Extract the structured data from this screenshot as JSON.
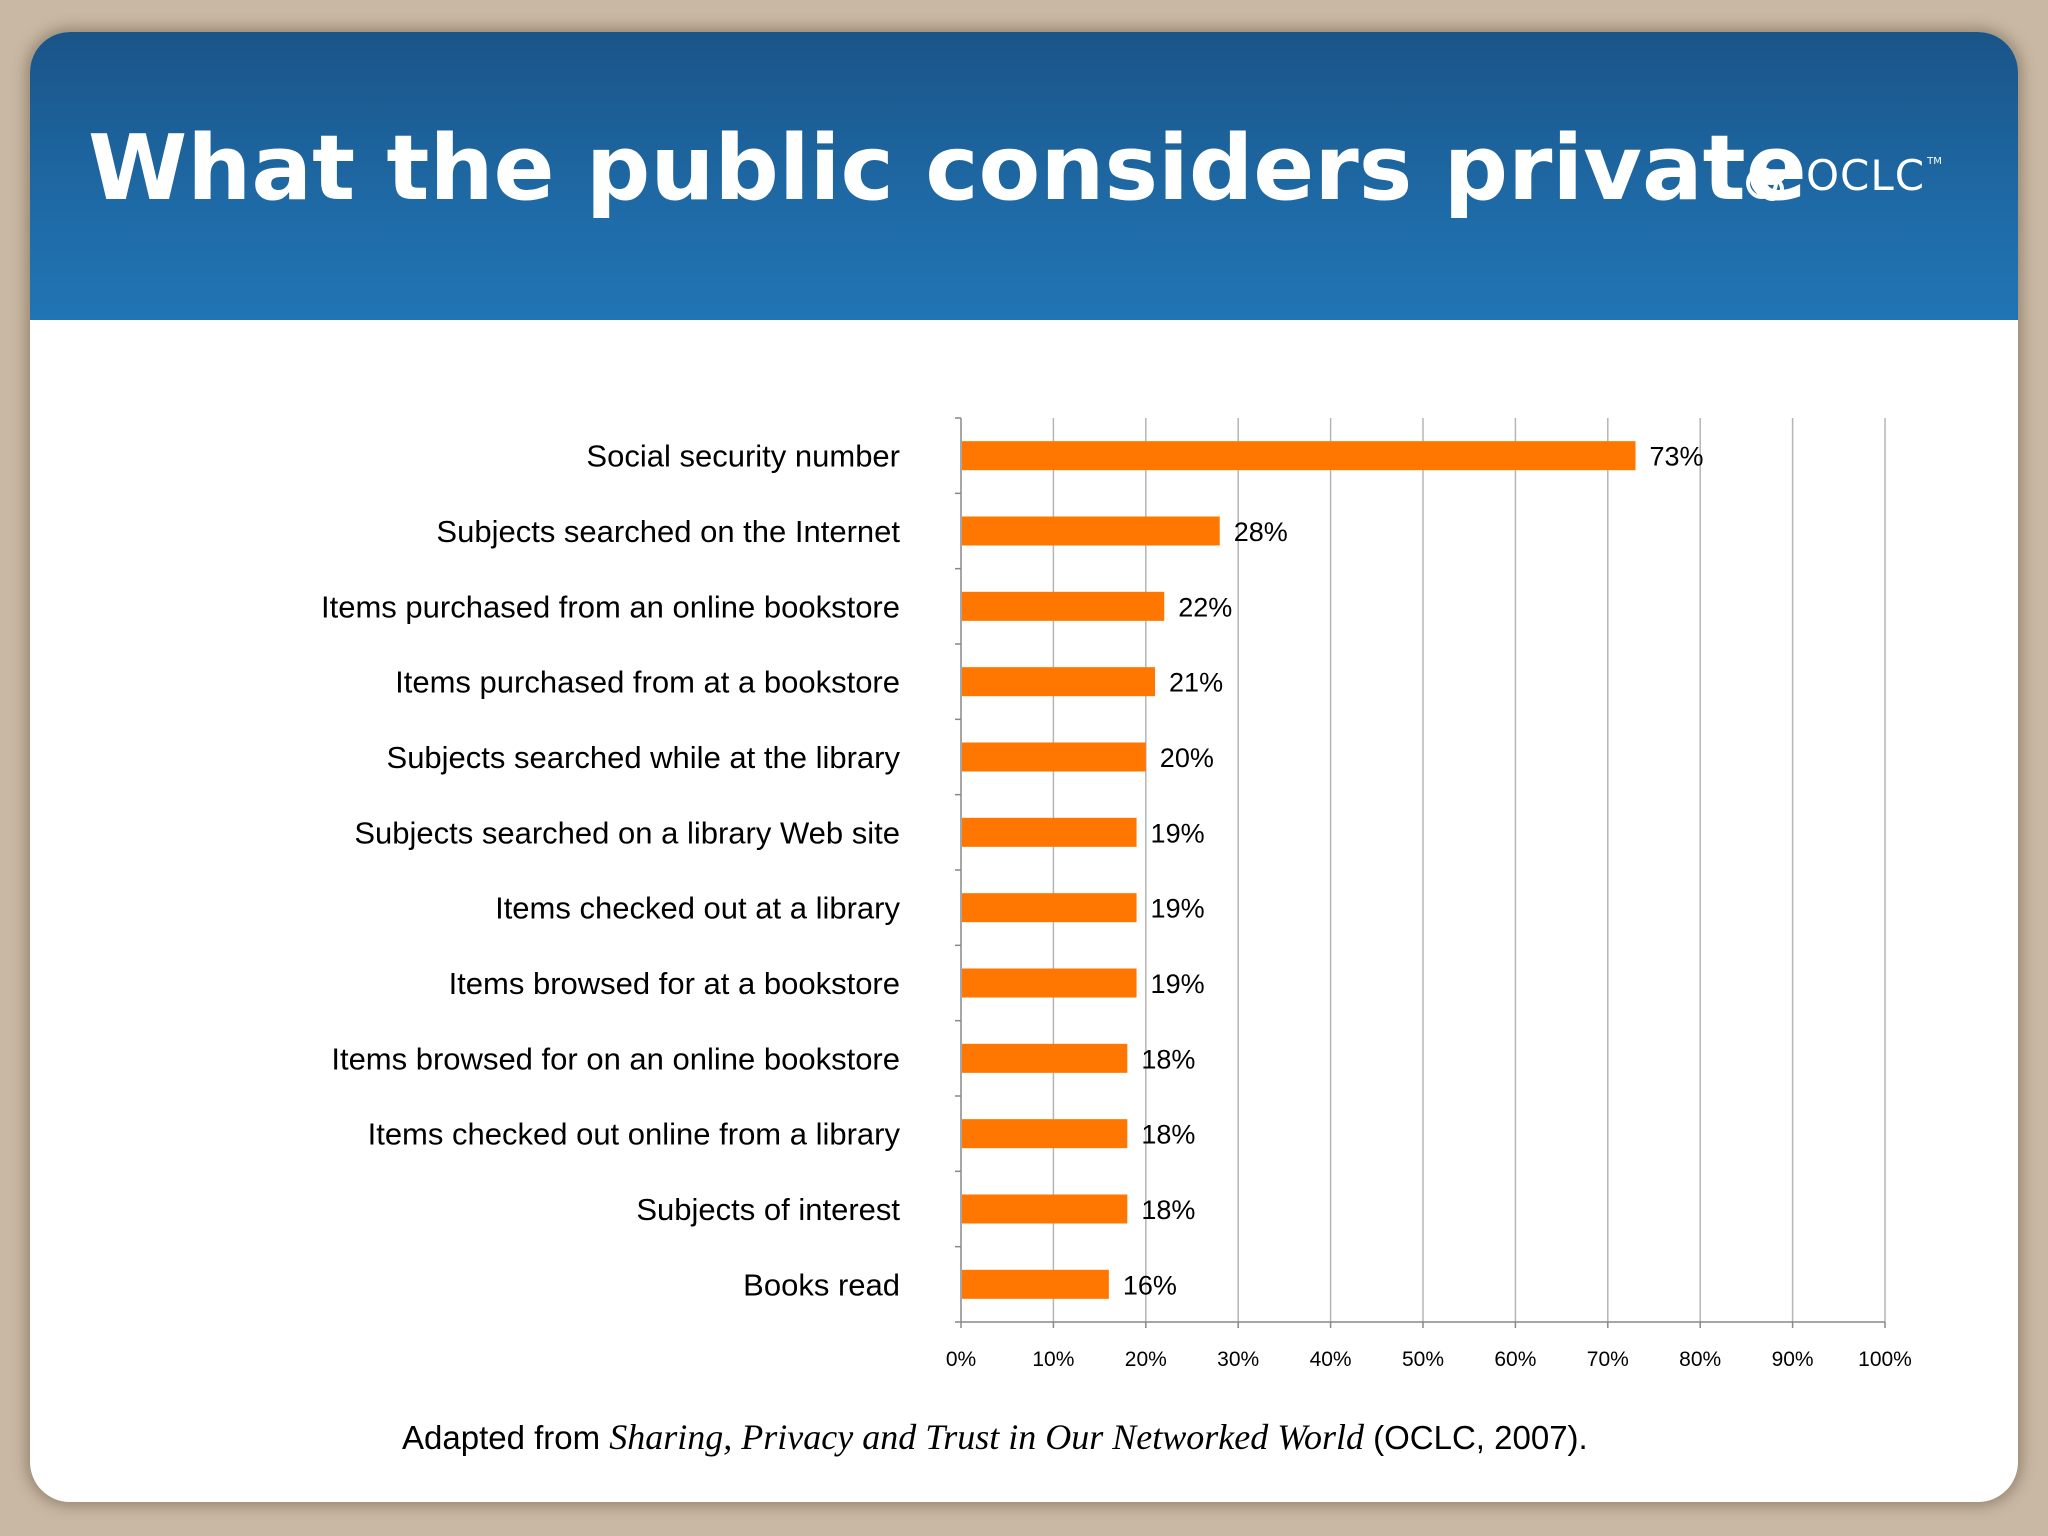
{
  "slide": {
    "title": "What the public considers private",
    "logo_text": "OCLC",
    "logo_tm": "TM",
    "footnote_prefix": "Adapted from ",
    "footnote_italic": "Sharing, Privacy and Trust in Our Networked World",
    "footnote_suffix": " (OCLC, 2007)."
  },
  "colors": {
    "header_top": "#1a5488",
    "header_bottom": "#2175b4",
    "bar": "#ff7600",
    "frame": "#c9b9a4"
  },
  "icons": {
    "logo": "oclc-logo-icon"
  },
  "chart_data": {
    "type": "bar",
    "orientation": "horizontal",
    "categories": [
      "Social security number",
      "Subjects searched on the Internet",
      "Items purchased from an online bookstore",
      "Items purchased from at a bookstore",
      "Subjects searched while at the library",
      "Subjects searched on a library Web site",
      "Items checked out at a library",
      "Items browsed for at a bookstore",
      "Items browsed for on an online bookstore",
      "Items checked out online from a library",
      "Subjects of interest",
      "Books read"
    ],
    "values": [
      73,
      28,
      22,
      21,
      20,
      19,
      19,
      19,
      18,
      18,
      18,
      16
    ],
    "data_labels": [
      "73%",
      "28%",
      "22%",
      "21%",
      "20%",
      "19%",
      "19%",
      "19%",
      "18%",
      "18%",
      "18%",
      "16%"
    ],
    "xlim": [
      0,
      100
    ],
    "x_ticks": [
      0,
      10,
      20,
      30,
      40,
      50,
      60,
      70,
      80,
      90,
      100
    ],
    "x_tick_labels": [
      "0%",
      "10%",
      "20%",
      "30%",
      "40%",
      "50%",
      "60%",
      "70%",
      "80%",
      "90%",
      "100%"
    ],
    "grid": "vertical",
    "legend": "none",
    "title": "",
    "xlabel": "",
    "ylabel": ""
  }
}
